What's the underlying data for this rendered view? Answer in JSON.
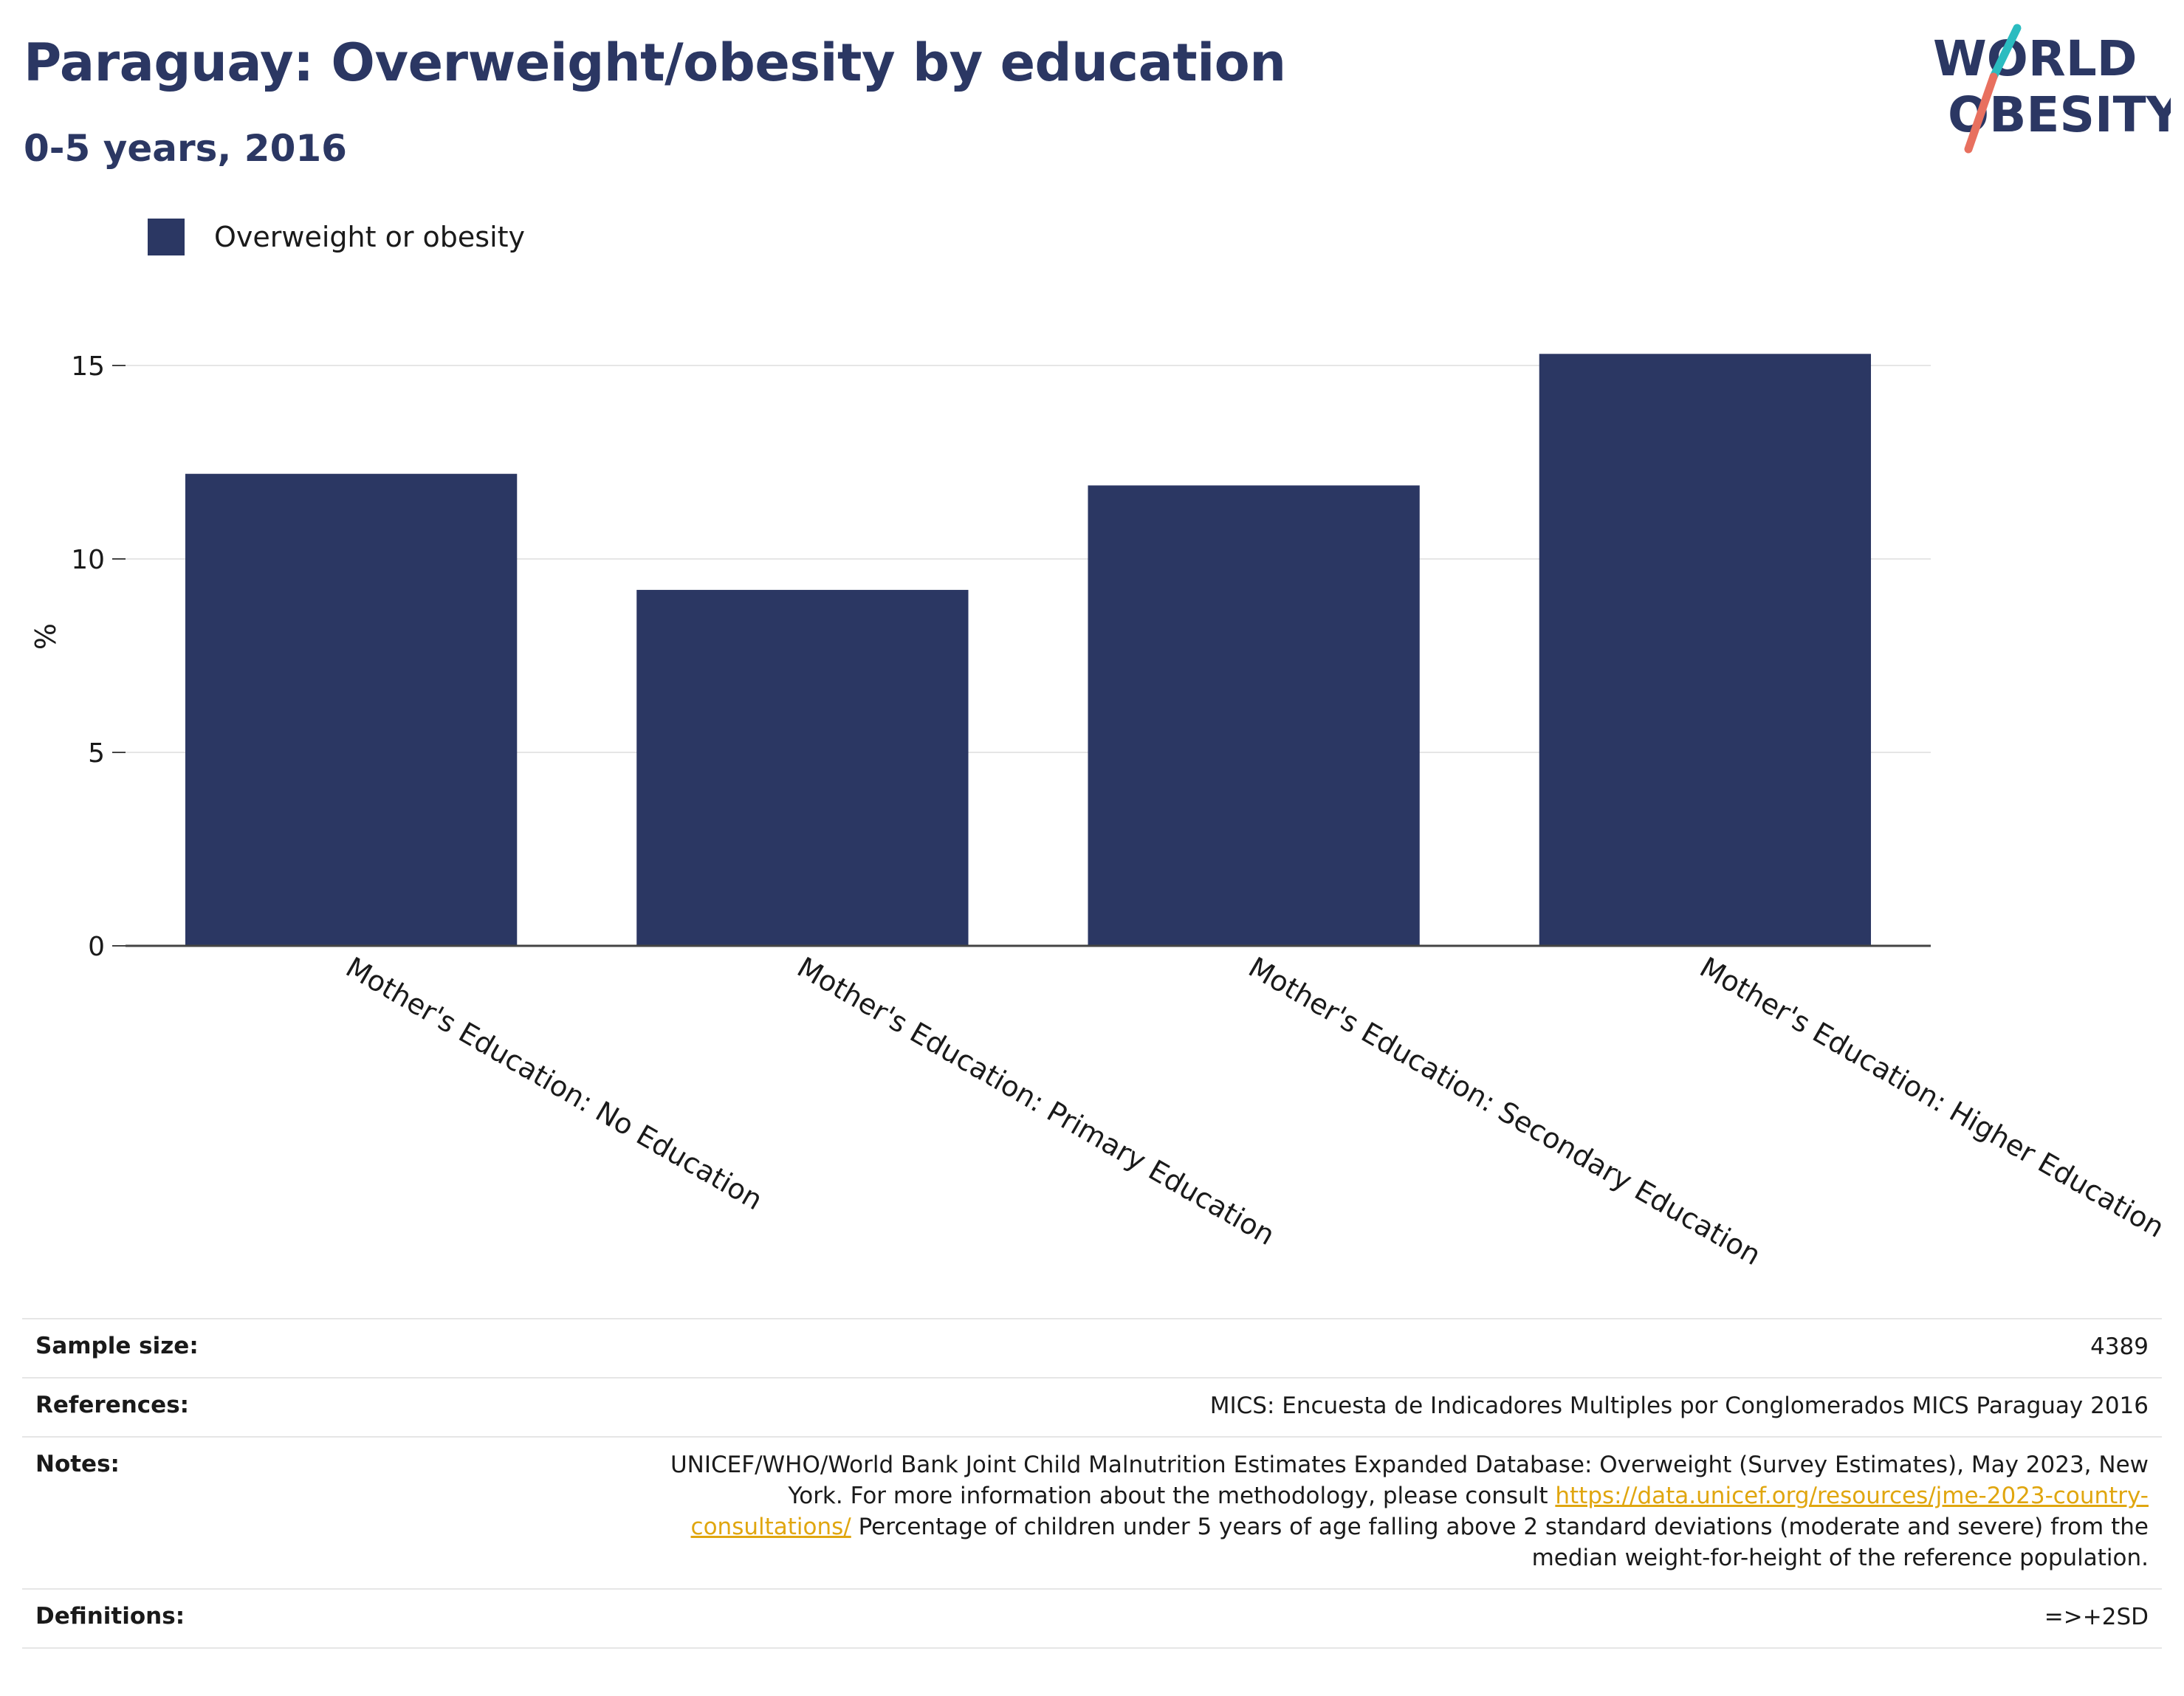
{
  "header": {
    "title": "Paraguay: Overweight/obesity by education",
    "subtitle": "0-5 years, 2016"
  },
  "logo": {
    "line1": "WORLD",
    "line2": "OBESITY",
    "colors": {
      "text": "#2b3763",
      "teal": "#2bbcc0",
      "coral": "#e8705f"
    }
  },
  "legend": {
    "label": "Overweight or obesity",
    "color": "#2b3763"
  },
  "chart_data": {
    "type": "bar",
    "categories": [
      "Mother's Education: No Education",
      "Mother's Education: Primary Education",
      "Mother's Education: Secondary Education",
      "Mother's Education: Higher Education"
    ],
    "series": [
      {
        "name": "Overweight or obesity",
        "values": [
          12.2,
          9.2,
          11.9,
          15.3
        ]
      }
    ],
    "ylabel": "%",
    "ylim": [
      0,
      16
    ],
    "yticks": [
      0,
      5,
      10,
      15
    ],
    "grid": true,
    "legend_position": "top-left",
    "bar_color": "#2b3763"
  },
  "info": {
    "sample_size": {
      "label": "Sample size:",
      "value": "4389"
    },
    "references": {
      "label": "References:",
      "value": "MICS: Encuesta de Indicadores Multiples por Conglomerados MICS Paraguay 2016"
    },
    "notes": {
      "label": "Notes:",
      "text_before": "UNICEF/WHO/World Bank Joint Child Malnutrition Estimates Expanded Database: Overweight (Survey Estimates), May 2023, New York. For more information about the methodology, please consult ",
      "link": "https://data.unicef.org/resources/jme-2023-country-consultations/",
      "text_after": " Percentage of children under 5 years of age falling above 2 standard deviations (moderate and severe) from the median weight-for-height of the reference population."
    },
    "definitions": {
      "label": "Definitions:",
      "value": "=>+2SD"
    }
  }
}
